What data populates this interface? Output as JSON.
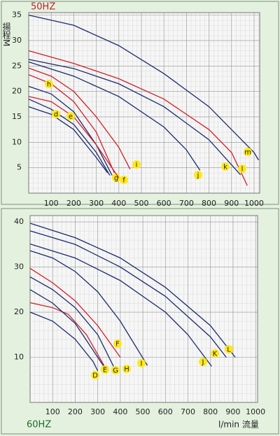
{
  "chart_data": [
    {
      "type": "line",
      "title": "50HZ",
      "y_label": "揚程M",
      "xlim": [
        0,
        1025
      ],
      "ylim": [
        0,
        35.5
      ],
      "xticks": [
        100,
        200,
        300,
        400,
        500,
        600,
        700,
        800,
        900,
        1000
      ],
      "yticks": [
        5,
        10,
        15,
        20,
        25,
        30,
        35
      ],
      "grid": true,
      "series": [
        {
          "name": "m",
          "color": "#1c2b6e",
          "x": [
            0,
            200,
            400,
            600,
            800,
            900,
            1000,
            1020
          ],
          "values": [
            35,
            33,
            29,
            23.5,
            17,
            12.5,
            8,
            6.5
          ]
        },
        {
          "name": "l",
          "color": "#d0202a",
          "x": [
            0,
            200,
            400,
            600,
            800,
            900,
            970
          ],
          "values": [
            28,
            25.5,
            22.5,
            18.5,
            12.5,
            8,
            1.5
          ]
        },
        {
          "name": "k",
          "color": "#1c2b6e",
          "x": [
            0,
            200,
            400,
            600,
            800,
            940
          ],
          "values": [
            26.3,
            24.5,
            21.5,
            17,
            10.5,
            3.6
          ]
        },
        {
          "name": "j",
          "color": "#1c2b6e",
          "x": [
            0,
            200,
            400,
            600,
            700,
            760
          ],
          "values": [
            25.8,
            23,
            19,
            13,
            8.5,
            4.5
          ]
        },
        {
          "name": "i",
          "color": "#d0202a",
          "x": [
            0,
            100,
            200,
            300,
            400,
            450
          ],
          "values": [
            24.6,
            23,
            20,
            15,
            9,
            4.7
          ]
        },
        {
          "name": "h",
          "color": "#d0202a",
          "x": [
            0,
            100,
            200,
            300,
            380
          ],
          "values": [
            23.3,
            21.5,
            18,
            12,
            4
          ]
        },
        {
          "name": "g",
          "color": "#1c2b6e",
          "x": [
            0,
            100,
            200,
            300,
            370
          ],
          "values": [
            21,
            19.5,
            16,
            9.5,
            3.5
          ]
        },
        {
          "name": "f",
          "color": "#d0202a",
          "x": [
            0,
            100,
            200,
            300,
            400
          ],
          "values": [
            19,
            18,
            15,
            9.5,
            3
          ]
        },
        {
          "name": "e",
          "color": "#1c2b6e",
          "x": [
            0,
            100,
            200,
            300,
            360
          ],
          "values": [
            18.5,
            16.5,
            13.5,
            8,
            3.5
          ]
        },
        {
          "name": "d",
          "color": "#1c2b6e",
          "x": [
            0,
            100,
            200,
            300,
            350
          ],
          "values": [
            17,
            15.5,
            12.5,
            7,
            4
          ]
        }
      ]
    },
    {
      "type": "line",
      "title": "60HZ",
      "x_label": "l/min 流量",
      "xlim": [
        0,
        1009
      ],
      "ylim": [
        0,
        41.4
      ],
      "xticks": [
        100,
        200,
        300,
        400,
        500,
        600,
        700,
        800,
        900,
        1000
      ],
      "yticks": [
        10,
        20,
        30,
        40
      ],
      "grid": true,
      "series": [
        {
          "name": "L",
          "color": "#1c2b6e",
          "x": [
            0,
            200,
            400,
            600,
            800,
            910
          ],
          "values": [
            39.7,
            36.5,
            32,
            25.5,
            17,
            10
          ]
        },
        {
          "name": "K",
          "color": "#1c2b6e",
          "x": [
            0,
            200,
            400,
            600,
            800,
            870
          ],
          "values": [
            38,
            35,
            30,
            23.5,
            14.5,
            10
          ]
        },
        {
          "name": "J",
          "color": "#1c2b6e",
          "x": [
            0,
            200,
            400,
            600,
            700,
            805
          ],
          "values": [
            35.1,
            32,
            27,
            20,
            15,
            8
          ]
        },
        {
          "name": "I",
          "color": "#1c2b6e",
          "x": [
            0,
            100,
            200,
            300,
            400,
            520
          ],
          "values": [
            33.6,
            32,
            29,
            24.5,
            18,
            8.2
          ]
        },
        {
          "name": "H",
          "color": "#d0202a",
          "x": [
            0,
            100,
            200,
            300,
            400
          ],
          "values": [
            29.7,
            26.5,
            22.5,
            17,
            10
          ]
        },
        {
          "name": "G",
          "color": "#1c2b6e",
          "x": [
            0,
            100,
            200,
            300,
            370
          ],
          "values": [
            27.8,
            25,
            21,
            15,
            8
          ]
        },
        {
          "name": "F",
          "color": "#d0202a",
          "x": [
            0,
            100,
            170,
            250,
            330
          ],
          "values": [
            22.1,
            21,
            19.5,
            15,
            8
          ]
        },
        {
          "name": "E",
          "color": "#1c2b6e",
          "x": [
            0,
            100,
            200,
            300,
            340
          ],
          "values": [
            25,
            22,
            17.5,
            10,
            7
          ]
        },
        {
          "name": "D",
          "color": "#1c2b6e",
          "x": [
            0,
            100,
            200,
            280,
            300
          ],
          "values": [
            20,
            18,
            14,
            9,
            7
          ]
        }
      ]
    }
  ]
}
